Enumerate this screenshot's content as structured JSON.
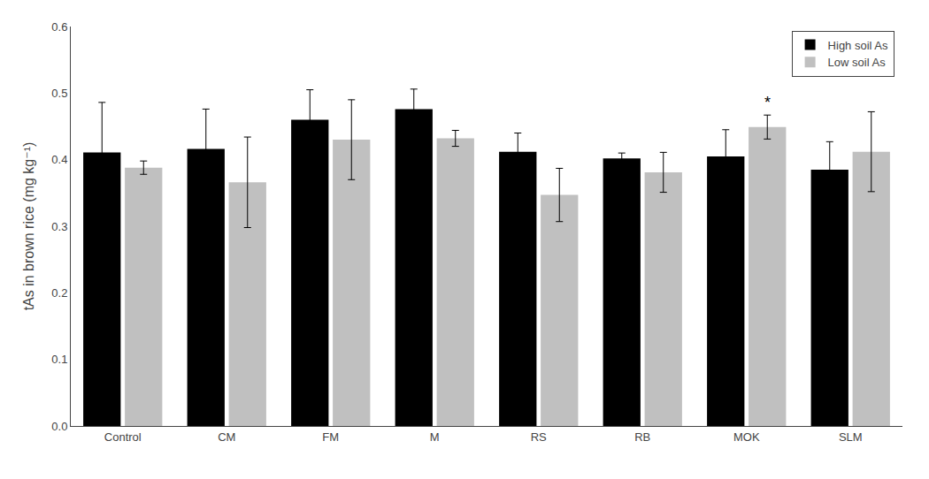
{
  "chart_data": {
    "type": "bar",
    "categories": [
      "Control",
      "CM",
      "FM",
      "M",
      "RS",
      "RB",
      "MOK",
      "SLM"
    ],
    "series": [
      {
        "name": "High soil As",
        "color": "#000000",
        "values": [
          0.411,
          0.416,
          0.46,
          0.476,
          0.412,
          0.402,
          0.405,
          0.385
        ],
        "errors": [
          0.075,
          0.06,
          0.045,
          0.03,
          0.028,
          0.008,
          0.04,
          0.042
        ]
      },
      {
        "name": "Low soil As",
        "color": "#c0c0c0",
        "values": [
          0.388,
          0.366,
          0.43,
          0.432,
          0.347,
          0.381,
          0.449,
          0.412
        ],
        "errors": [
          0.01,
          0.068,
          0.06,
          0.012,
          0.04,
          0.03,
          0.018,
          0.06
        ]
      }
    ],
    "ylabel": "tAs in brown rice (mg kg⁻¹)",
    "ylim": [
      0.0,
      0.6
    ],
    "yticks": [
      {
        "value": 0,
        "label": "0.0"
      },
      0.1,
      0.2,
      0.3,
      0.4,
      0.5,
      0.6
    ],
    "grid": false,
    "legend": "upper right",
    "annotations": [
      {
        "text": "*",
        "category": "MOK",
        "series": "Low soil As"
      }
    ]
  }
}
